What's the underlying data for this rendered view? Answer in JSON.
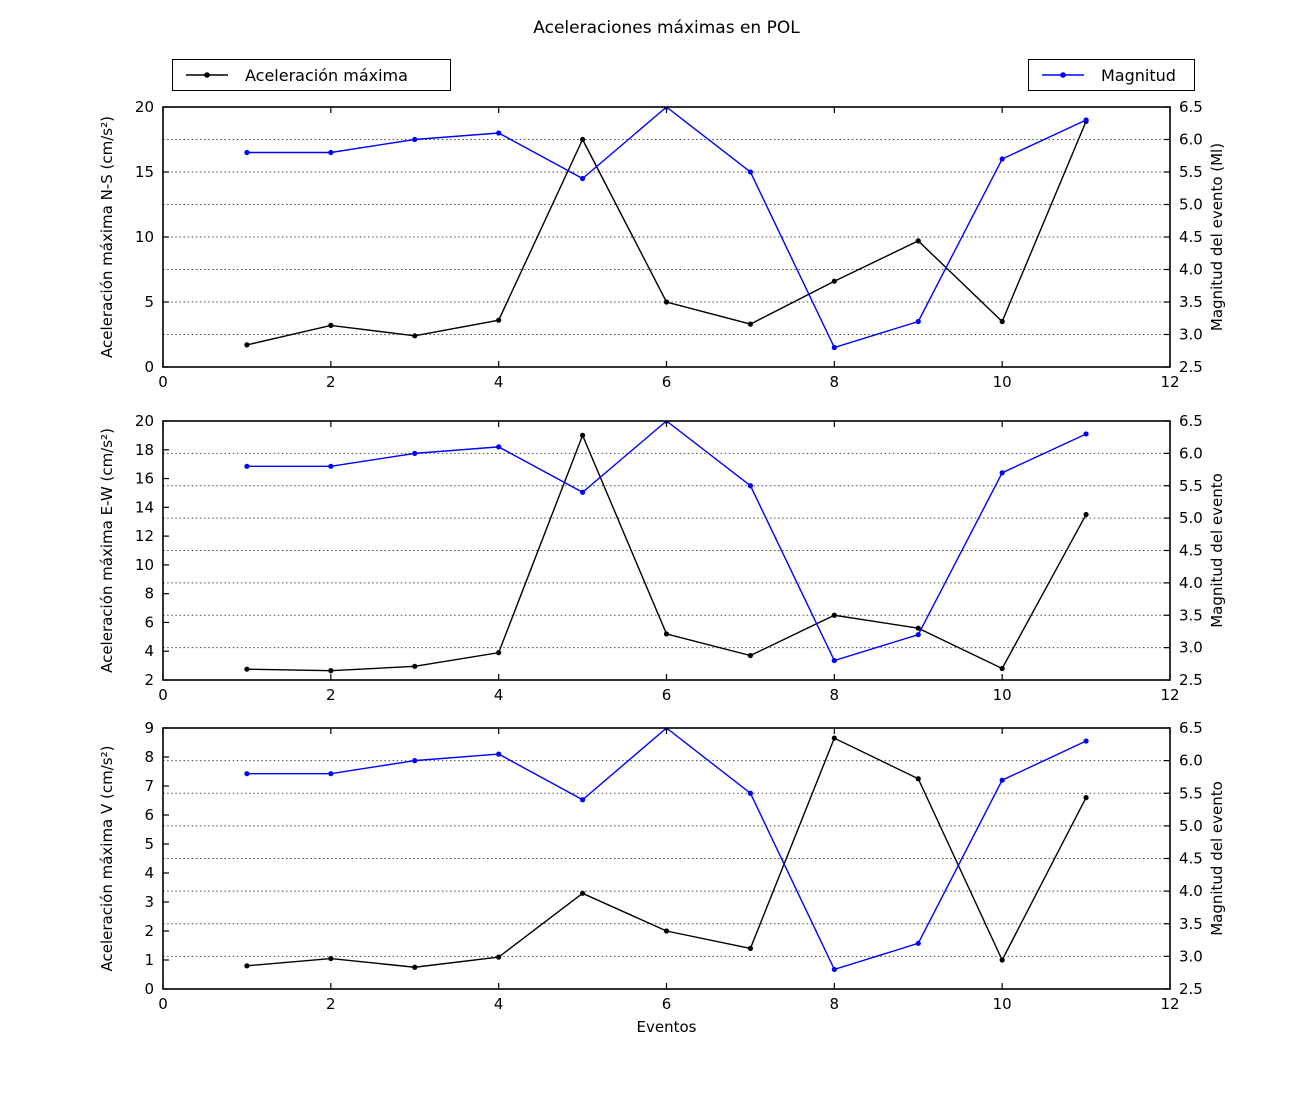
{
  "title": "Aceleraciones máximas en POL",
  "xlabel": "Eventos",
  "legends": [
    {
      "label": "Aceleración máxima",
      "color": "#000000"
    },
    {
      "label": "Magnitud",
      "color": "#0000ff"
    }
  ],
  "colors": {
    "series_aceleracion": "#000000",
    "series_magnitud": "#0000ff",
    "grid": "#4a4a4a",
    "axes": "#000000",
    "background": "#ffffff"
  },
  "chart_data": [
    {
      "type": "line",
      "id": "ns",
      "x": [
        1,
        2,
        3,
        4,
        5,
        6,
        7,
        8,
        9,
        10,
        11
      ],
      "series": [
        {
          "name": "Aceleración máxima",
          "axis": "left",
          "color": "#000000",
          "values": [
            1.7,
            3.2,
            2.4,
            3.6,
            17.5,
            5.0,
            3.3,
            6.6,
            9.7,
            3.5,
            18.9
          ]
        },
        {
          "name": "Magnitud",
          "axis": "right",
          "color": "#0000ff",
          "values": [
            5.8,
            5.8,
            6.0,
            6.1,
            5.4,
            6.5,
            5.5,
            2.8,
            3.2,
            5.7,
            6.3
          ]
        }
      ],
      "ylabel_left": "Aceleración máxima N-S (cm/s²)",
      "ylabel_right": "Magnitud del evento (Ml)",
      "ylim_left": [
        0,
        20
      ],
      "yticks_left": [
        0,
        5,
        10,
        15,
        20
      ],
      "ylim_right": [
        2.5,
        6.5
      ],
      "yticks_right": [
        2.5,
        3.0,
        3.5,
        4.0,
        4.5,
        5.0,
        5.5,
        6.0,
        6.5
      ],
      "xlim": [
        0,
        12
      ],
      "xticks": [
        0,
        2,
        4,
        6,
        8,
        10,
        12
      ],
      "grid": "horizontal-dotted"
    },
    {
      "type": "line",
      "id": "ew",
      "x": [
        1,
        2,
        3,
        4,
        5,
        6,
        7,
        8,
        9,
        10,
        11
      ],
      "series": [
        {
          "name": "Aceleración máxima",
          "axis": "left",
          "color": "#000000",
          "values": [
            2.75,
            2.65,
            2.95,
            3.9,
            19.0,
            5.2,
            3.7,
            6.5,
            5.6,
            2.8,
            13.5
          ]
        },
        {
          "name": "Magnitud",
          "axis": "right",
          "color": "#0000ff",
          "values": [
            5.8,
            5.8,
            6.0,
            6.1,
            5.4,
            6.5,
            5.5,
            2.8,
            3.2,
            5.7,
            6.3
          ]
        }
      ],
      "ylabel_left": "Aceleración máxima E-W (cm/s²)",
      "ylabel_right": "Magnitud del evento",
      "ylim_left": [
        2,
        20
      ],
      "yticks_left": [
        2,
        4,
        6,
        8,
        10,
        12,
        14,
        16,
        18,
        20
      ],
      "ylim_right": [
        2.5,
        6.5
      ],
      "yticks_right": [
        2.5,
        3.0,
        3.5,
        4.0,
        4.5,
        5.0,
        5.5,
        6.0,
        6.5
      ],
      "xlim": [
        0,
        12
      ],
      "xticks": [
        0,
        2,
        4,
        6,
        8,
        10,
        12
      ],
      "grid": "horizontal-dotted"
    },
    {
      "type": "line",
      "id": "v",
      "x": [
        1,
        2,
        3,
        4,
        5,
        6,
        7,
        8,
        9,
        10,
        11
      ],
      "series": [
        {
          "name": "Aceleración máxima",
          "axis": "left",
          "color": "#000000",
          "values": [
            0.8,
            1.05,
            0.75,
            1.1,
            3.3,
            2.0,
            1.4,
            8.65,
            7.25,
            1.0,
            6.6
          ]
        },
        {
          "name": "Magnitud",
          "axis": "right",
          "color": "#0000ff",
          "values": [
            5.8,
            5.8,
            6.0,
            6.1,
            5.4,
            6.5,
            5.5,
            2.8,
            3.2,
            5.7,
            6.3
          ]
        }
      ],
      "ylabel_left": "Aceleración máxima V (cm/s²)",
      "ylabel_right": "Magnitud del evento",
      "ylim_left": [
        0,
        9
      ],
      "yticks_left": [
        0,
        1,
        2,
        3,
        4,
        5,
        6,
        7,
        8,
        9
      ],
      "ylim_right": [
        2.5,
        6.5
      ],
      "yticks_right": [
        2.5,
        3.0,
        3.5,
        4.0,
        4.5,
        5.0,
        5.5,
        6.0,
        6.5
      ],
      "xlim": [
        0,
        12
      ],
      "xticks": [
        0,
        2,
        4,
        6,
        8,
        10,
        12
      ],
      "grid": "horizontal-dotted"
    }
  ]
}
